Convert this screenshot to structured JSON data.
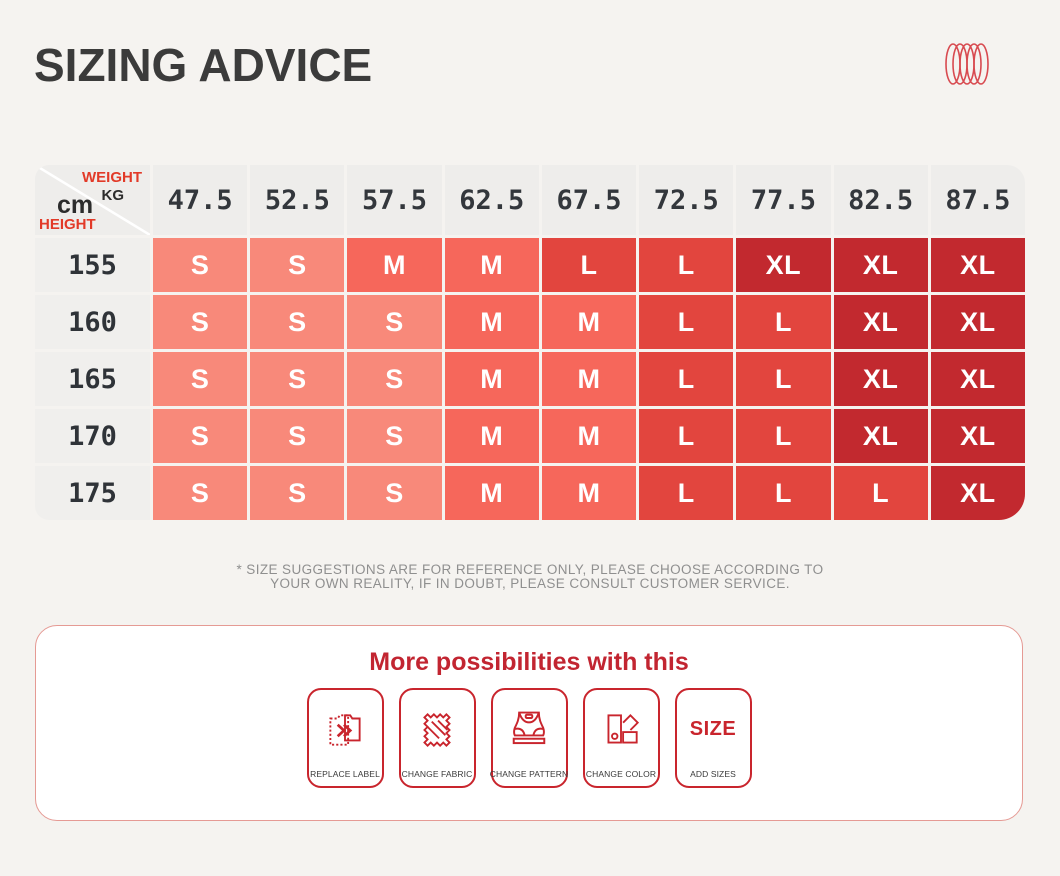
{
  "page": {
    "title": "SIZING ADVICE"
  },
  "logo": {
    "name": "coil-rings-logo",
    "color": "#d84a50"
  },
  "size_chart": {
    "corner": {
      "weight_label": "WEIGHT",
      "weight_unit": "KG",
      "height_unit": "cm",
      "height_label": "HEIGHT"
    },
    "weights": [
      "47.5",
      "52.5",
      "57.5",
      "62.5",
      "67.5",
      "72.5",
      "77.5",
      "82.5",
      "87.5"
    ],
    "rows": [
      {
        "height": "155",
        "sizes": [
          "S",
          "S",
          "M",
          "M",
          "L",
          "L",
          "XL",
          "XL",
          "XL"
        ]
      },
      {
        "height": "160",
        "sizes": [
          "S",
          "S",
          "S",
          "M",
          "M",
          "L",
          "L",
          "XL",
          "XL"
        ]
      },
      {
        "height": "165",
        "sizes": [
          "S",
          "S",
          "S",
          "M",
          "M",
          "L",
          "L",
          "XL",
          "XL"
        ]
      },
      {
        "height": "170",
        "sizes": [
          "S",
          "S",
          "S",
          "M",
          "M",
          "L",
          "L",
          "XL",
          "XL"
        ]
      },
      {
        "height": "175",
        "sizes": [
          "S",
          "S",
          "S",
          "M",
          "M",
          "L",
          "L",
          "L",
          "XL"
        ]
      }
    ],
    "colors": {
      "S": "#f8897a",
      "M": "#f6675b",
      "L": "#e2453e",
      "XL": "#c2292f"
    }
  },
  "chart_data": {
    "type": "table",
    "title": "SIZING ADVICE",
    "column_axis_label": "WEIGHT KG",
    "row_axis_label": "HEIGHT cm",
    "columns": [
      47.5,
      52.5,
      57.5,
      62.5,
      67.5,
      72.5,
      77.5,
      82.5,
      87.5
    ],
    "rows": [
      155,
      160,
      165,
      170,
      175
    ],
    "values": [
      [
        "S",
        "S",
        "M",
        "M",
        "L",
        "L",
        "XL",
        "XL",
        "XL"
      ],
      [
        "S",
        "S",
        "S",
        "M",
        "M",
        "L",
        "L",
        "XL",
        "XL"
      ],
      [
        "S",
        "S",
        "S",
        "M",
        "M",
        "L",
        "L",
        "XL",
        "XL"
      ],
      [
        "S",
        "S",
        "S",
        "M",
        "M",
        "L",
        "L",
        "XL",
        "XL"
      ],
      [
        "S",
        "S",
        "S",
        "M",
        "M",
        "L",
        "L",
        "L",
        "XL"
      ]
    ]
  },
  "disclaimer": {
    "line1": "* SIZE SUGGESTIONS ARE FOR REFERENCE ONLY, PLEASE CHOOSE ACCORDING TO",
    "line2": "YOUR OWN REALITY, IF IN DOUBT, PLEASE CONSULT CUSTOMER SERVICE."
  },
  "possibilities": {
    "title": "More possibilities with this",
    "items": [
      {
        "label": "REPLACE LABEL",
        "icon": "replace-label-icon"
      },
      {
        "label": "CHANGE FABRIC",
        "icon": "change-fabric-icon"
      },
      {
        "label": "CHANGE PATTERN",
        "icon": "change-pattern-icon"
      },
      {
        "label": "CHANGE COLOR",
        "icon": "change-color-icon"
      },
      {
        "label": "ADD SIZES",
        "icon": "add-sizes-icon",
        "icon_text": "SIZE"
      }
    ]
  }
}
